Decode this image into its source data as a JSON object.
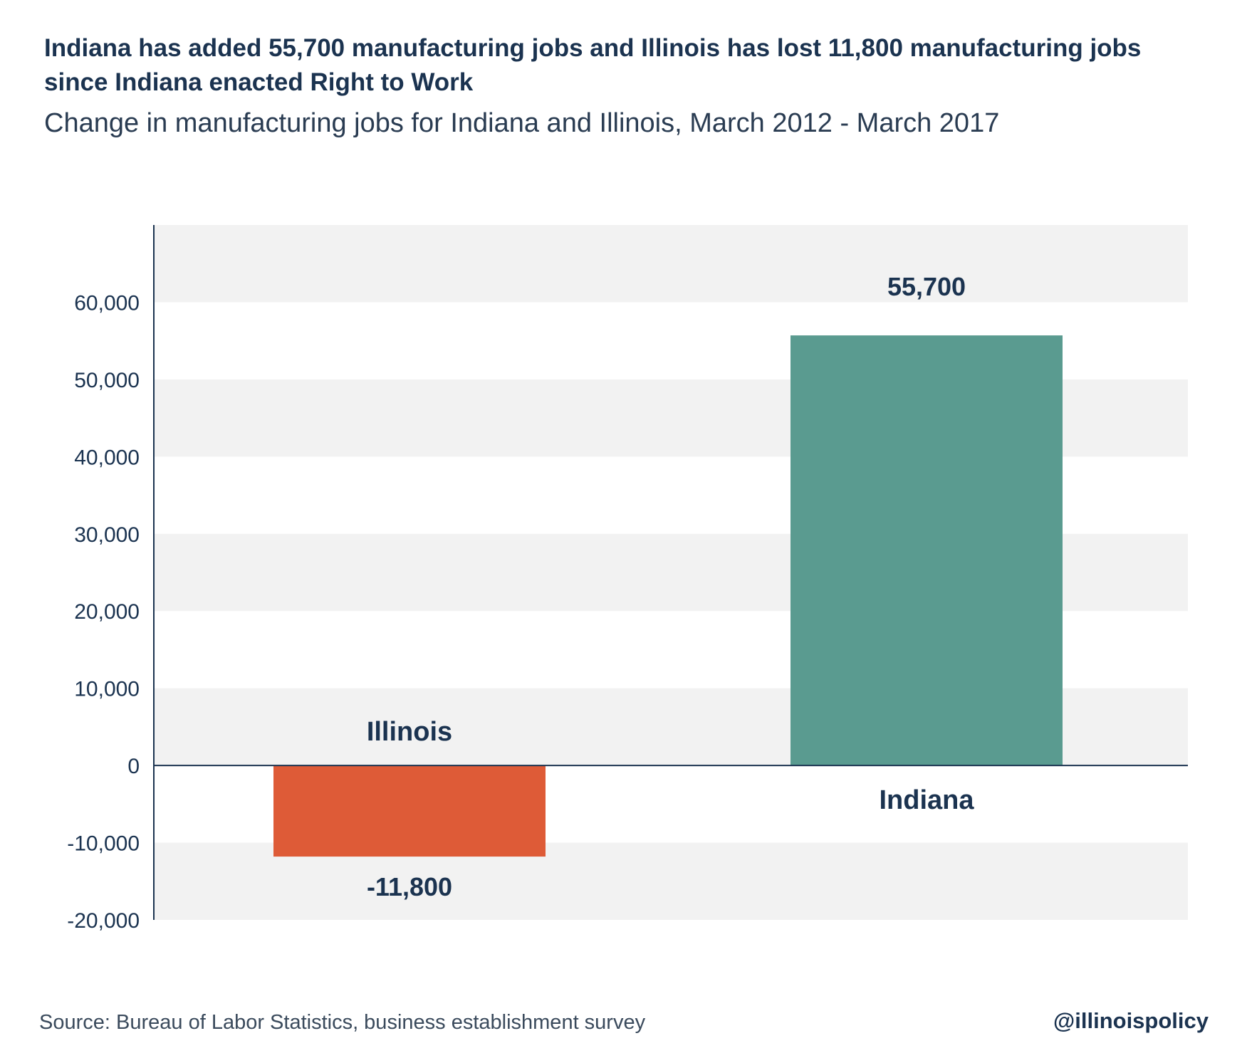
{
  "title": "Indiana has added 55,700 manufacturing jobs and Illinois has lost 11,800 manufacturing jobs since Indiana enacted Right to Work",
  "subtitle": "Change in manufacturing jobs for Indiana and Illinois, March 2012 - March 2017",
  "source": "Source: Bureau of Labor Statistics, business establishment survey",
  "handle": "@illinoispolicy",
  "colors": {
    "illinois": "#de5b37",
    "indiana": "#5a9b90",
    "band": "#f2f2f2",
    "axis": "#1b3350",
    "text": "#1b3350"
  },
  "chart_data": {
    "type": "bar",
    "categories": [
      "Illinois",
      "Indiana"
    ],
    "values": [
      -11800,
      55700
    ],
    "value_labels": [
      "-11,800",
      "55,700"
    ],
    "bar_colors": [
      "#de5b37",
      "#5a9b90"
    ],
    "ylim": [
      -20000,
      70000
    ],
    "yticks": [
      -20000,
      -10000,
      0,
      10000,
      20000,
      30000,
      40000,
      50000,
      60000
    ],
    "ytick_labels": [
      "-20,000",
      "-10,000",
      "0",
      "10,000",
      "20,000",
      "30,000",
      "40,000",
      "50,000",
      "60,000"
    ],
    "grid": "alternating horizontal bands",
    "legend": "none"
  }
}
